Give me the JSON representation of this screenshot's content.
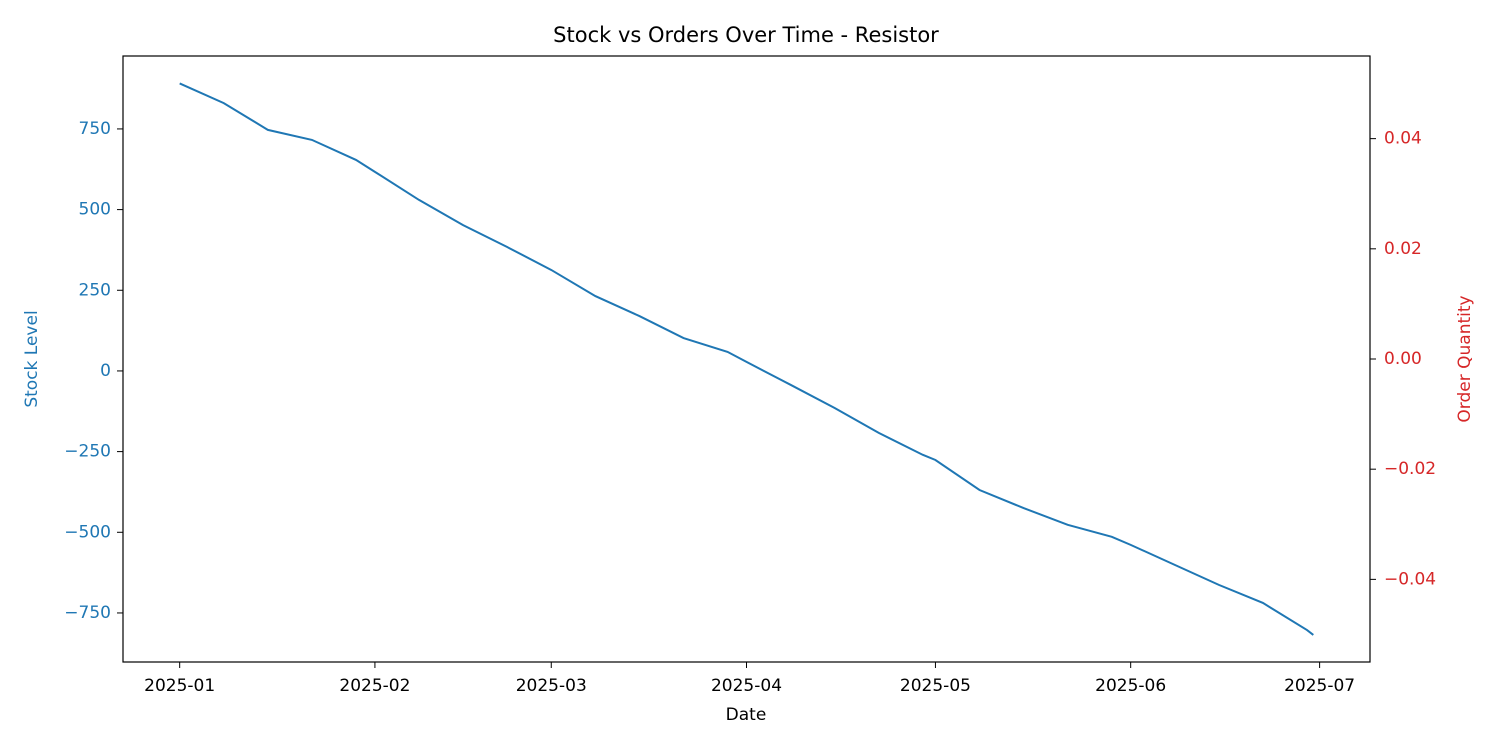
{
  "chart_data": {
    "type": "line",
    "title": "Stock vs Orders Over Time - Resistor",
    "x_label": "Date",
    "y_label": "Stock Level",
    "y2_label": "Order Quantity",
    "x": [
      "2025-01-01",
      "2025-01-08",
      "2025-01-15",
      "2025-01-22",
      "2025-01-29",
      "2025-02-01",
      "2025-02-08",
      "2025-02-15",
      "2025-02-22",
      "2025-03-01",
      "2025-03-08",
      "2025-03-15",
      "2025-03-22",
      "2025-03-29",
      "2025-04-01",
      "2025-04-08",
      "2025-04-15",
      "2025-04-22",
      "2025-04-29",
      "2025-05-01",
      "2025-05-08",
      "2025-05-15",
      "2025-05-22",
      "2025-05-29",
      "2025-06-01",
      "2025-06-08",
      "2025-06-15",
      "2025-06-22",
      "2025-06-29",
      "2025-06-30"
    ],
    "series": [
      {
        "name": "Stock Level",
        "color": "#1f77b4",
        "values": [
          891,
          830,
          747,
          716,
          654,
          617,
          530,
          452,
          384,
          313,
          232,
          170,
          102,
          59,
          28,
          -43,
          -115,
          -192,
          -260,
          -276,
          -369,
          -425,
          -477,
          -514,
          -539,
          -601,
          -663,
          -719,
          -803,
          -818
        ]
      }
    ],
    "xlim": [
      "2024-12-23",
      "2025-07-09"
    ],
    "xticks": [
      "2025-01",
      "2025-02",
      "2025-03",
      "2025-04",
      "2025-05",
      "2025-06",
      "2025-07"
    ],
    "ylim": [
      -902,
      976
    ],
    "yticks": [
      {
        "value": -750,
        "label": "−750"
      },
      {
        "value": -500,
        "label": "−500"
      },
      {
        "value": -250,
        "label": "−250"
      },
      0,
      250,
      500,
      750
    ],
    "y_color": "#1f77b4",
    "y2lim": [
      -0.055,
      0.055
    ],
    "y2ticks": [
      {
        "value": -0.04,
        "label": "−0.04"
      },
      {
        "value": -0.02,
        "label": "−0.02"
      },
      {
        "value": 0,
        "label": "0.00"
      },
      0.02,
      0.04
    ],
    "y2_color": "#d62728"
  }
}
